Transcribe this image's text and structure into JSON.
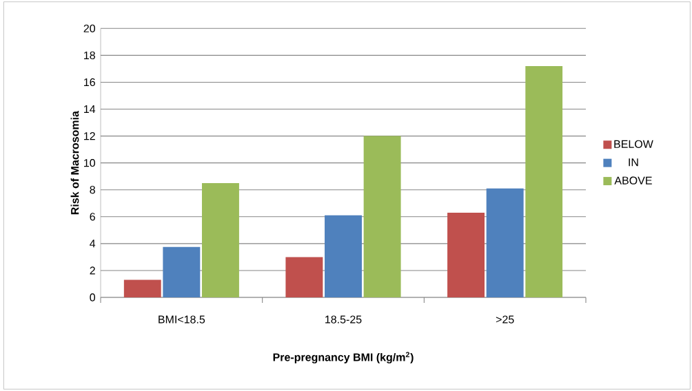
{
  "chart_data": {
    "type": "bar",
    "xlabel": "Pre-pregnancy BMI (kg/m$^{2}$)",
    "ylabel": "Risk of Macrosomia",
    "categories": [
      "BMI<18.5",
      "18.5-25",
      ">25"
    ],
    "series": [
      {
        "name": "BELOW",
        "color": "#c0504d",
        "values": [
          1.3,
          3.0,
          6.3
        ]
      },
      {
        "name": "IN",
        "color": "#4f81bd",
        "values": [
          3.75,
          6.1,
          8.1
        ]
      },
      {
        "name": "ABOVE",
        "color": "#9bbb59",
        "values": [
          8.5,
          12.0,
          17.2
        ]
      }
    ],
    "ylim": [
      0,
      20
    ],
    "yticks": [
      0,
      2,
      4,
      6,
      8,
      10,
      12,
      14,
      16,
      18,
      20
    ],
    "grid": "y",
    "legend": "right"
  }
}
